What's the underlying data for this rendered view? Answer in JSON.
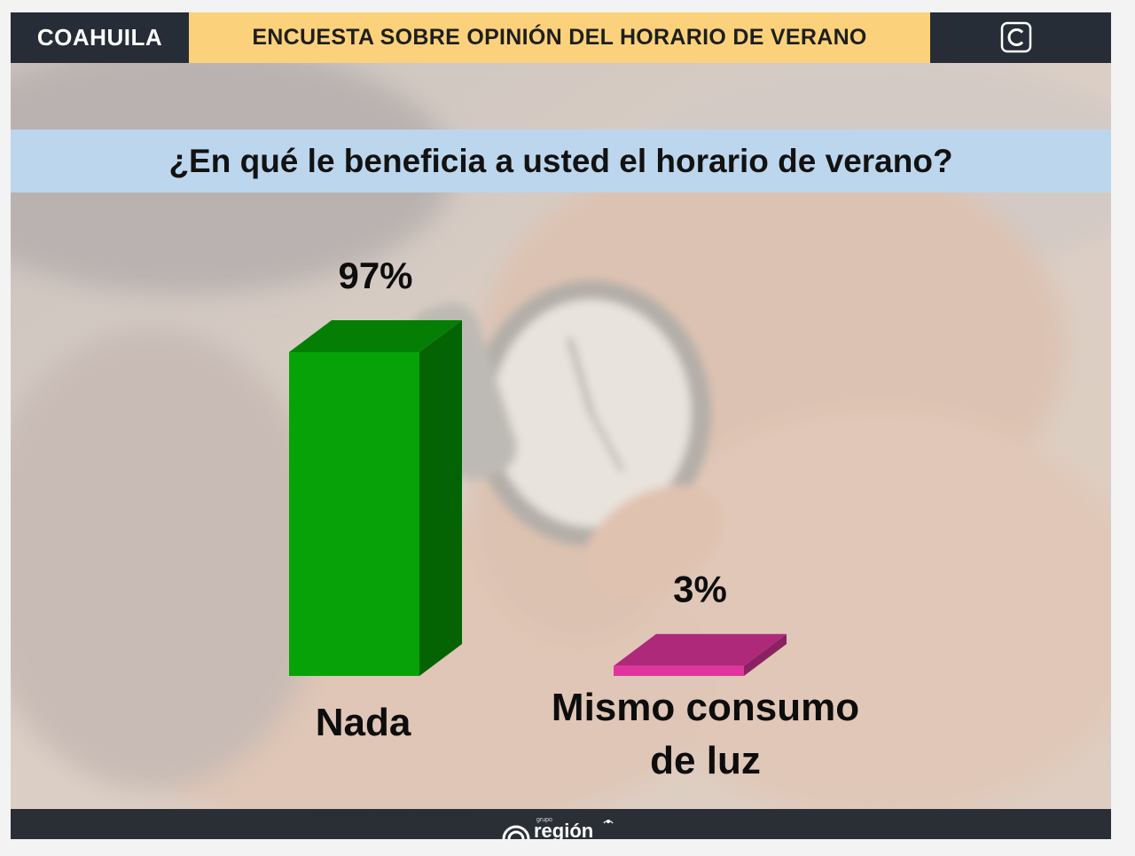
{
  "header": {
    "region": "COAHUILA",
    "title": "ENCUESTA SOBRE OPINIÓN DEL HORARIO DE VERANO",
    "logo_icon": "copyright-c-icon"
  },
  "question": "¿En qué le beneficia a usted el horario de verano?",
  "footer": {
    "brand_small": "grupo",
    "brand": "región",
    "logo_icon": "region-logo-icon"
  },
  "colors": {
    "header_dark": "#272d36",
    "header_yellow": "#fbd27b",
    "question_band": "#bcd6ed",
    "bar_nada": "#07a207",
    "bar_luz": "#e0359e"
  },
  "chart_data": {
    "type": "bar",
    "style": "3d-column",
    "title": "",
    "xlabel": "",
    "ylabel": "",
    "ylim": [
      0,
      100
    ],
    "grid": false,
    "categories": [
      "Nada",
      "Mismo consumo de luz"
    ],
    "category_lines": [
      [
        "Nada"
      ],
      [
        "Mismo consumo",
        "de luz"
      ]
    ],
    "values": [
      97,
      3
    ],
    "data_labels": [
      "97%",
      "3%"
    ],
    "colors": [
      "#07a207",
      "#e0359e"
    ]
  }
}
